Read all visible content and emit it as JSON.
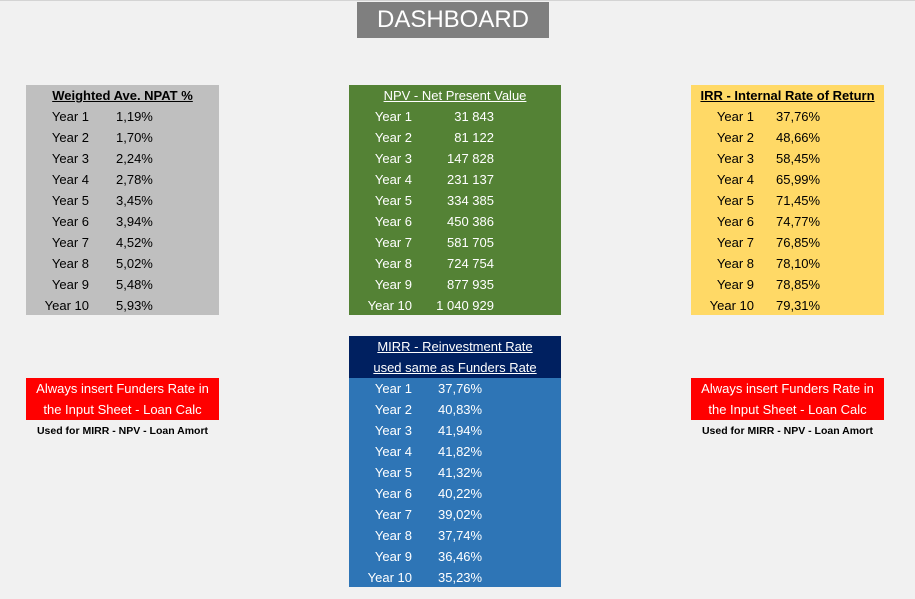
{
  "title": "DASHBOARD",
  "weighted": {
    "header": "Weighted Ave. NPAT %",
    "rows": [
      {
        "label": "Year 1",
        "value": "1,19%"
      },
      {
        "label": "Year 2",
        "value": "1,70%"
      },
      {
        "label": "Year 3",
        "value": "2,24%"
      },
      {
        "label": "Year 4",
        "value": "2,78%"
      },
      {
        "label": "Year 5",
        "value": "3,45%"
      },
      {
        "label": "Year 6",
        "value": "3,94%"
      },
      {
        "label": "Year 7",
        "value": "4,52%"
      },
      {
        "label": "Year 8",
        "value": "5,02%"
      },
      {
        "label": "Year 9",
        "value": "5,48%"
      },
      {
        "label": "Year 10",
        "value": "5,93%"
      }
    ]
  },
  "npv": {
    "header": "NPV - Net Present Value",
    "rows": [
      {
        "label": "Year 1",
        "value": "31 843"
      },
      {
        "label": "Year 2",
        "value": "81 122"
      },
      {
        "label": "Year 3",
        "value": "147 828"
      },
      {
        "label": "Year 4",
        "value": "231 137"
      },
      {
        "label": "Year 5",
        "value": "334 385"
      },
      {
        "label": "Year 6",
        "value": "450 386"
      },
      {
        "label": "Year 7",
        "value": "581 705"
      },
      {
        "label": "Year 8",
        "value": "724 754"
      },
      {
        "label": "Year 9",
        "value": "877 935"
      },
      {
        "label": "Year 10",
        "value": "1 040 929"
      }
    ]
  },
  "irr": {
    "header": "IRR - Internal Rate of Return",
    "rows": [
      {
        "label": "Year 1",
        "value": "37,76%"
      },
      {
        "label": "Year 2",
        "value": "48,66%"
      },
      {
        "label": "Year 3",
        "value": "58,45%"
      },
      {
        "label": "Year 4",
        "value": "65,99%"
      },
      {
        "label": "Year 5",
        "value": "71,45%"
      },
      {
        "label": "Year 6",
        "value": "74,77%"
      },
      {
        "label": "Year 7",
        "value": "76,85%"
      },
      {
        "label": "Year 8",
        "value": "78,10%"
      },
      {
        "label": "Year 9",
        "value": "78,85%"
      },
      {
        "label": "Year 10",
        "value": "79,31%"
      }
    ]
  },
  "mirr": {
    "header_line1": "MIRR - Reinvestment Rate",
    "header_line2": "used same as Funders Rate",
    "rows": [
      {
        "label": "Year 1",
        "value": "37,76%"
      },
      {
        "label": "Year 2",
        "value": "40,83%"
      },
      {
        "label": "Year 3",
        "value": "41,94%"
      },
      {
        "label": "Year 4",
        "value": "41,82%"
      },
      {
        "label": "Year 5",
        "value": "41,32%"
      },
      {
        "label": "Year 6",
        "value": "40,22%"
      },
      {
        "label": "Year 7",
        "value": "39,02%"
      },
      {
        "label": "Year 8",
        "value": "37,74%"
      },
      {
        "label": "Year 9",
        "value": "36,46%"
      },
      {
        "label": "Year 10",
        "value": "35,23%"
      }
    ]
  },
  "warning": {
    "line1": "Always insert Funders Rate in",
    "line2": "the Input Sheet - Loan Calc",
    "note": "Used for MIRR - NPV - Loan Amort"
  },
  "colors": {
    "weighted_bg": "#bfbfbf",
    "npv_bg": "#548235",
    "irr_bg": "#ffd966",
    "mirr_header_bg": "#002060",
    "mirr_bg": "#2e75b6",
    "warning_bg": "#ff0000",
    "title_bg": "#7f7f7f"
  }
}
